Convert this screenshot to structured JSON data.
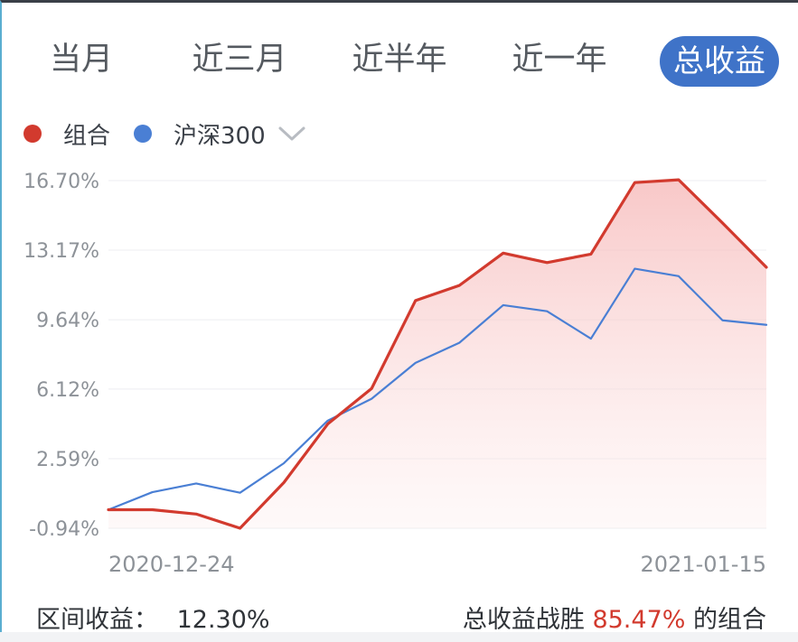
{
  "tabs": [
    {
      "label": "当月"
    },
    {
      "label": "近三月"
    },
    {
      "label": "近半年"
    },
    {
      "label": "近一年"
    },
    {
      "label": "总收益",
      "active": true
    }
  ],
  "legend": {
    "series_a": "组合",
    "series_b": "沪深300"
  },
  "colors": {
    "portfolio": "#d23a2e",
    "benchmark": "#4a7fd4",
    "accent": "#3f73c8"
  },
  "footer": {
    "interval_label": "区间收益：",
    "interval_value": "12.30%",
    "beat_prefix": "总收益战胜",
    "beat_value": "85.47%",
    "beat_suffix": "的组合"
  },
  "chart_data": {
    "type": "line",
    "y_ticks": [
      "16.70%",
      "13.17%",
      "9.64%",
      "6.12%",
      "2.59%",
      "-0.94%"
    ],
    "y_tick_values": [
      16.7,
      13.17,
      9.64,
      6.12,
      2.59,
      -0.94
    ],
    "ylim": [
      -0.94,
      16.7
    ],
    "x_start_label": "2020-12-24",
    "x_end_label": "2021-01-15",
    "grid": true,
    "legend_position": "top-left",
    "series": [
      {
        "name": "组合",
        "color": "#d23a2e",
        "values": [
          0.0,
          0.0,
          -0.22,
          -0.94,
          1.38,
          4.35,
          6.15,
          10.61,
          11.38,
          13.02,
          12.54,
          12.97,
          16.6,
          16.74,
          14.55,
          12.3
        ]
      },
      {
        "name": "沪深300",
        "color": "#4a7fd4",
        "values": [
          0.0,
          0.89,
          1.33,
          0.86,
          2.36,
          4.52,
          5.63,
          7.45,
          8.47,
          10.38,
          10.07,
          8.68,
          12.23,
          11.85,
          9.61,
          9.38
        ]
      }
    ]
  }
}
